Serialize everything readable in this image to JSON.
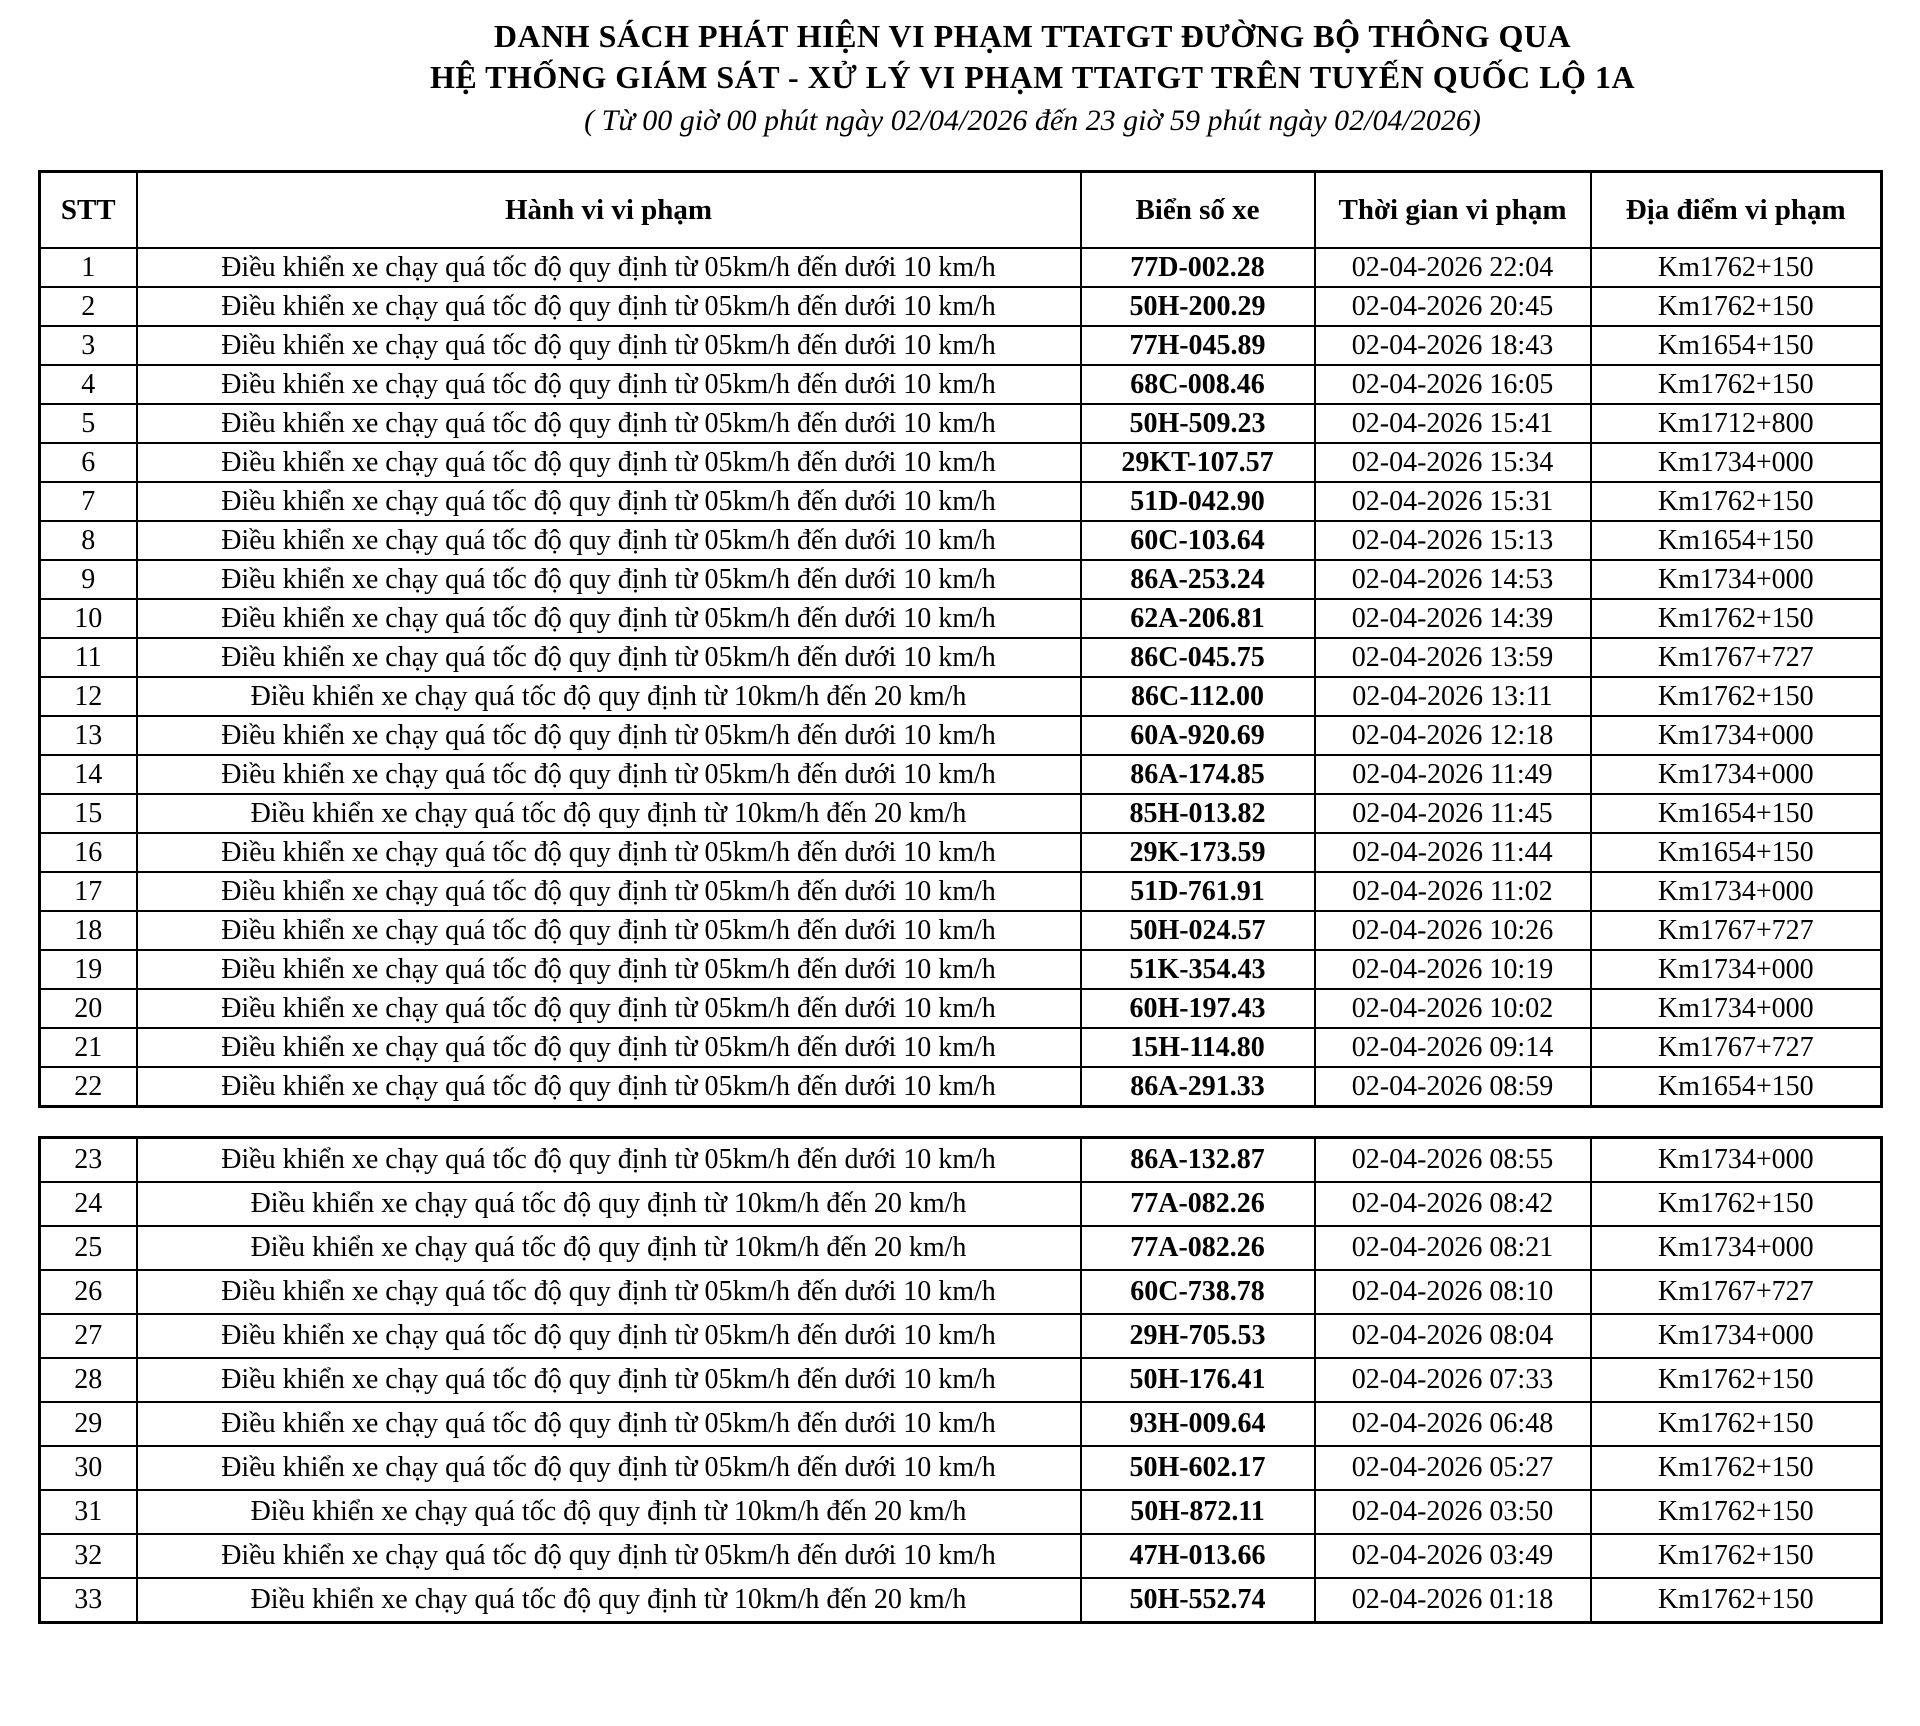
{
  "colors": {
    "text": "#000000",
    "background": "#ffffff",
    "border": "#000000"
  },
  "title": {
    "line1": "DANH SÁCH PHÁT HIỆN VI PHẠM TTATGT ĐƯỜNG BỘ THÔNG QUA",
    "line2": "HỆ THỐNG GIÁM SÁT - XỬ LÝ VI PHẠM TTATGT TRÊN TUYẾN QUỐC LỘ 1A",
    "line3": "( Từ 00 giờ 00 phút ngày 02/04/2026 đến 23 giờ 59 phút ngày 02/04/2026)"
  },
  "table": {
    "headers": {
      "stt": "STT",
      "violation": "Hành vi vi phạm",
      "plate": "Biển số xe",
      "time": "Thời gian vi phạm",
      "location": "Địa điểm vi phạm"
    },
    "section_break_after": 22
  },
  "rows": [
    {
      "stt": "1",
      "violation": "Điều khiển xe chạy quá tốc độ quy định từ 05km/h đến dưới 10 km/h",
      "plate": "77D-002.28",
      "time": "02-04-2026 22:04",
      "location": "Km1762+150"
    },
    {
      "stt": "2",
      "violation": "Điều khiển xe chạy quá tốc độ quy định từ 05km/h đến dưới 10 km/h",
      "plate": "50H-200.29",
      "time": "02-04-2026 20:45",
      "location": "Km1762+150"
    },
    {
      "stt": "3",
      "violation": "Điều khiển xe chạy quá tốc độ quy định từ 05km/h đến dưới 10 km/h",
      "plate": "77H-045.89",
      "time": "02-04-2026 18:43",
      "location": "Km1654+150"
    },
    {
      "stt": "4",
      "violation": "Điều khiển xe chạy quá tốc độ quy định từ 05km/h đến dưới 10 km/h",
      "plate": "68C-008.46",
      "time": "02-04-2026 16:05",
      "location": "Km1762+150"
    },
    {
      "stt": "5",
      "violation": "Điều khiển xe chạy quá tốc độ quy định từ 05km/h đến dưới 10 km/h",
      "plate": "50H-509.23",
      "time": "02-04-2026 15:41",
      "location": "Km1712+800"
    },
    {
      "stt": "6",
      "violation": "Điều khiển xe chạy quá tốc độ quy định từ 05km/h đến dưới 10 km/h",
      "plate": "29KT-107.57",
      "time": "02-04-2026 15:34",
      "location": "Km1734+000"
    },
    {
      "stt": "7",
      "violation": "Điều khiển xe chạy quá tốc độ quy định từ 05km/h đến dưới 10 km/h",
      "plate": "51D-042.90",
      "time": "02-04-2026 15:31",
      "location": "Km1762+150"
    },
    {
      "stt": "8",
      "violation": "Điều khiển xe chạy quá tốc độ quy định từ 05km/h đến dưới 10 km/h",
      "plate": "60C-103.64",
      "time": "02-04-2026 15:13",
      "location": "Km1654+150"
    },
    {
      "stt": "9",
      "violation": "Điều khiển xe chạy quá tốc độ quy định từ 05km/h đến dưới 10 km/h",
      "plate": "86A-253.24",
      "time": "02-04-2026 14:53",
      "location": "Km1734+000"
    },
    {
      "stt": "10",
      "violation": "Điều khiển xe chạy quá tốc độ quy định từ 05km/h đến dưới 10 km/h",
      "plate": "62A-206.81",
      "time": "02-04-2026 14:39",
      "location": "Km1762+150"
    },
    {
      "stt": "11",
      "violation": "Điều khiển xe chạy quá tốc độ quy định từ 05km/h đến dưới 10 km/h",
      "plate": "86C-045.75",
      "time": "02-04-2026 13:59",
      "location": "Km1767+727"
    },
    {
      "stt": "12",
      "violation": "Điều khiển xe chạy quá tốc độ quy định từ 10km/h đến 20 km/h",
      "plate": "86C-112.00",
      "time": "02-04-2026 13:11",
      "location": "Km1762+150"
    },
    {
      "stt": "13",
      "violation": "Điều khiển xe chạy quá tốc độ quy định từ 05km/h đến dưới 10 km/h",
      "plate": "60A-920.69",
      "time": "02-04-2026 12:18",
      "location": "Km1734+000"
    },
    {
      "stt": "14",
      "violation": "Điều khiển xe chạy quá tốc độ quy định từ 05km/h đến dưới 10 km/h",
      "plate": "86A-174.85",
      "time": "02-04-2026 11:49",
      "location": "Km1734+000"
    },
    {
      "stt": "15",
      "violation": "Điều khiển xe chạy quá tốc độ quy định từ 10km/h đến 20 km/h",
      "plate": "85H-013.82",
      "time": "02-04-2026 11:45",
      "location": "Km1654+150"
    },
    {
      "stt": "16",
      "violation": "Điều khiển xe chạy quá tốc độ quy định từ 05km/h đến dưới 10 km/h",
      "plate": "29K-173.59",
      "time": "02-04-2026 11:44",
      "location": "Km1654+150"
    },
    {
      "stt": "17",
      "violation": "Điều khiển xe chạy quá tốc độ quy định từ 05km/h đến dưới 10 km/h",
      "plate": "51D-761.91",
      "time": "02-04-2026 11:02",
      "location": "Km1734+000"
    },
    {
      "stt": "18",
      "violation": "Điều khiển xe chạy quá tốc độ quy định từ 05km/h đến dưới 10 km/h",
      "plate": "50H-024.57",
      "time": "02-04-2026 10:26",
      "location": "Km1767+727"
    },
    {
      "stt": "19",
      "violation": "Điều khiển xe chạy quá tốc độ quy định từ 05km/h đến dưới 10 km/h",
      "plate": "51K-354.43",
      "time": "02-04-2026 10:19",
      "location": "Km1734+000"
    },
    {
      "stt": "20",
      "violation": "Điều khiển xe chạy quá tốc độ quy định từ 05km/h đến dưới 10 km/h",
      "plate": "60H-197.43",
      "time": "02-04-2026 10:02",
      "location": "Km1734+000"
    },
    {
      "stt": "21",
      "violation": "Điều khiển xe chạy quá tốc độ quy định từ 05km/h đến dưới 10 km/h",
      "plate": "15H-114.80",
      "time": "02-04-2026 09:14",
      "location": "Km1767+727"
    },
    {
      "stt": "22",
      "violation": "Điều khiển xe chạy quá tốc độ quy định từ 05km/h đến dưới 10 km/h",
      "plate": "86A-291.33",
      "time": "02-04-2026 08:59",
      "location": "Km1654+150"
    },
    {
      "stt": "23",
      "violation": "Điều khiển xe chạy quá tốc độ quy định từ 05km/h đến dưới 10 km/h",
      "plate": "86A-132.87",
      "time": "02-04-2026 08:55",
      "location": "Km1734+000"
    },
    {
      "stt": "24",
      "violation": "Điều khiển xe chạy quá tốc độ quy định từ 10km/h đến 20 km/h",
      "plate": "77A-082.26",
      "time": "02-04-2026 08:42",
      "location": "Km1762+150"
    },
    {
      "stt": "25",
      "violation": "Điều khiển xe chạy quá tốc độ quy định từ 10km/h đến 20 km/h",
      "plate": "77A-082.26",
      "time": "02-04-2026 08:21",
      "location": "Km1734+000"
    },
    {
      "stt": "26",
      "violation": "Điều khiển xe chạy quá tốc độ quy định từ 05km/h đến dưới 10 km/h",
      "plate": "60C-738.78",
      "time": "02-04-2026 08:10",
      "location": "Km1767+727"
    },
    {
      "stt": "27",
      "violation": "Điều khiển xe chạy quá tốc độ quy định từ 05km/h đến dưới 10 km/h",
      "plate": "29H-705.53",
      "time": "02-04-2026 08:04",
      "location": "Km1734+000"
    },
    {
      "stt": "28",
      "violation": "Điều khiển xe chạy quá tốc độ quy định từ 05km/h đến dưới 10 km/h",
      "plate": "50H-176.41",
      "time": "02-04-2026 07:33",
      "location": "Km1762+150"
    },
    {
      "stt": "29",
      "violation": "Điều khiển xe chạy quá tốc độ quy định từ 05km/h đến dưới 10 km/h",
      "plate": "93H-009.64",
      "time": "02-04-2026 06:48",
      "location": "Km1762+150"
    },
    {
      "stt": "30",
      "violation": "Điều khiển xe chạy quá tốc độ quy định từ 05km/h đến dưới 10 km/h",
      "plate": "50H-602.17",
      "time": "02-04-2026 05:27",
      "location": "Km1762+150"
    },
    {
      "stt": "31",
      "violation": "Điều khiển xe chạy quá tốc độ quy định từ 10km/h đến 20 km/h",
      "plate": "50H-872.11",
      "time": "02-04-2026 03:50",
      "location": "Km1762+150"
    },
    {
      "stt": "32",
      "violation": "Điều khiển xe chạy quá tốc độ quy định từ 05km/h đến dưới 10 km/h",
      "plate": "47H-013.66",
      "time": "02-04-2026 03:49",
      "location": "Km1762+150"
    },
    {
      "stt": "33",
      "violation": "Điều khiển xe chạy quá tốc độ quy định từ 10km/h đến 20 km/h",
      "plate": "50H-552.74",
      "time": "02-04-2026 01:18",
      "location": "Km1762+150"
    }
  ]
}
